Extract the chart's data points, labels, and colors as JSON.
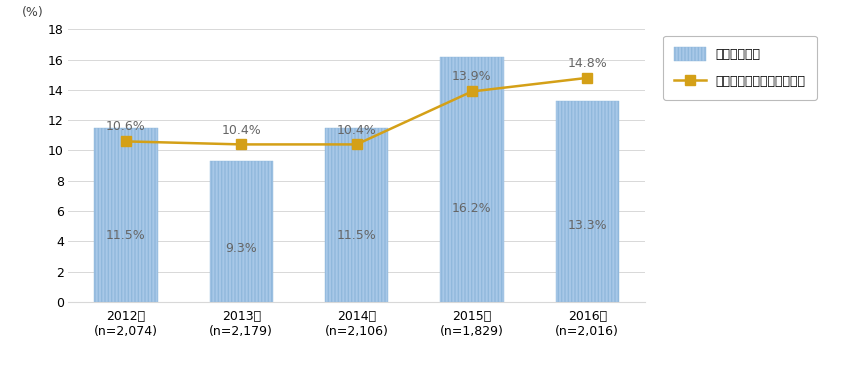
{
  "years": [
    "2012年\n(n=2,074)",
    "2013年\n(n=2,179)",
    "2014年\n(n=2,106)",
    "2015年\n(n=1,829)",
    "2016年\n(n=2,016)"
  ],
  "bar_values": [
    11.5,
    9.3,
    11.5,
    16.2,
    13.3
  ],
  "line_values": [
    10.6,
    10.4,
    10.4,
    13.9,
    14.8
  ],
  "bar_labels": [
    "11.5%",
    "9.3%",
    "11.5%",
    "16.2%",
    "13.3%"
  ],
  "line_labels": [
    "10.6%",
    "10.4%",
    "10.4%",
    "13.9%",
    "14.8%"
  ],
  "bar_color": "#a8c8e8",
  "bar_edge_color": "#90b8dc",
  "line_color": "#d4a017",
  "marker_color": "#d4a017",
  "background_color": "#ffffff",
  "grid_color": "#d8d8d8",
  "text_color": "#666666",
  "ylabel": "(%)",
  "ylim": [
    0,
    18
  ],
  "yticks": [
    0,
    2,
    4,
    6,
    8,
    10,
    12,
    14,
    16,
    18
  ],
  "bar_width": 0.55,
  "legend_bar_label": "導入している",
  "legend_line_label": "導入している（移動平均）",
  "tick_fontsize": 9,
  "label_fontsize": 9,
  "line_label_offsets": [
    0.55,
    0.5,
    0.5,
    0.55,
    0.55
  ]
}
